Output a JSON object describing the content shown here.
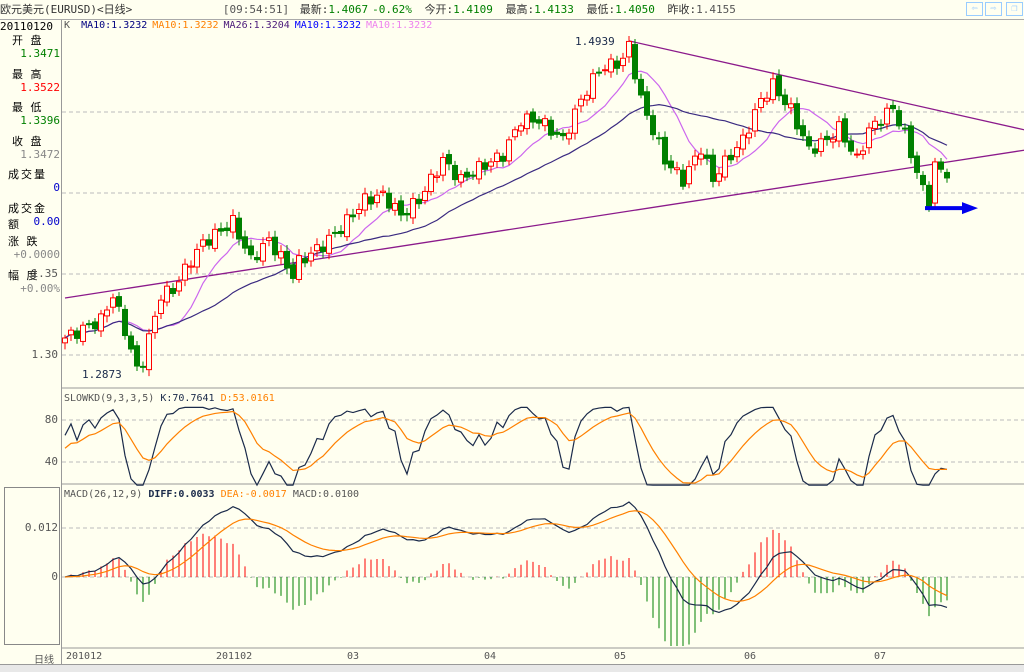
{
  "header": {
    "title": "欧元美元(EURUSD)<日线>",
    "time": "[09:54:51]",
    "latest_label": "最新:",
    "latest": "1.4067",
    "change": "-0.62%",
    "open_label": "今开:",
    "open": "1.4109",
    "high_label": "最高:",
    "high": "1.4133",
    "low_label": "最低:",
    "low": "1.4050",
    "prev_label": "昨收:",
    "prev": "1.4155",
    "nav": [
      "back-arrow-icon",
      "forward-arrow-icon",
      "restore-window-icon"
    ]
  },
  "info": {
    "date": "20110120",
    "items": [
      {
        "label": "开 盘",
        "value": "1.3471",
        "color": "#008000"
      },
      {
        "label": "最 高",
        "value": "1.3522",
        "color": "#ff0000"
      },
      {
        "label": "最 低",
        "value": "1.3396",
        "color": "#008000"
      },
      {
        "label": "收 盘",
        "value": "1.3472",
        "color": "#888888"
      },
      {
        "label": "成交量",
        "value": "0",
        "color": "#0000cc"
      },
      {
        "label": "成交金额",
        "value": "0.00",
        "color": "#0000cc"
      },
      {
        "label": "涨 跌",
        "value": "+0.0000",
        "color": "#888888"
      },
      {
        "label": "幅 度",
        "value": "+0.00%",
        "color": "#888888"
      }
    ]
  },
  "legend": {
    "k": "K",
    "items": [
      {
        "text": "MA10:1.3232",
        "color": "#000080"
      },
      {
        "text": "MA10:1.3232",
        "color": "#ff8000"
      },
      {
        "text": "MA26:1.3204",
        "color": "#4b1a7a"
      },
      {
        "text": "MA10:1.3232",
        "color": "#0000ff"
      },
      {
        "text": "MA10:1.3232",
        "color": "#ee82ee"
      }
    ]
  },
  "kd_legend": {
    "name": "SLOWKD(9,3,3,5)",
    "k": "K:70.7641",
    "d": "D:53.0161"
  },
  "macd_legend": {
    "name": "MACD(26,12,9)",
    "diff": "DIFF:0.0033",
    "dea": "DEA:-0.0017",
    "macd": "MACD:0.0100"
  },
  "period_label": "日线",
  "colors": {
    "up": "#ff0000",
    "down": "#008000",
    "ma_short": "#cc66ee",
    "ma_long": "#3a2a80",
    "trend": "#8b1a8b",
    "k": "#1a2a4a",
    "d": "#ff8000",
    "arrow": "#0000ee"
  },
  "chart_data": {
    "type": "candlestick",
    "price_axis": {
      "ticks": [
        "1.35",
        "1.30"
      ],
      "range": [
        1.27,
        1.5
      ]
    },
    "kd_axis": {
      "ticks": [
        "80",
        "40"
      ]
    },
    "macd_axis": {
      "ticks": [
        "0.012",
        "0"
      ]
    },
    "x_tick_labels": [
      "201012",
      "201102",
      "03",
      "04",
      "05",
      "06",
      "07"
    ],
    "annotations": {
      "high": "1.4939",
      "low": "1.2873"
    },
    "close_keypoints": [
      [
        0,
        1.3105
      ],
      [
        6,
        1.3216
      ],
      [
        8,
        1.337
      ],
      [
        10,
        1.3154
      ],
      [
        12,
        1.2907
      ],
      [
        13,
        1.2969
      ],
      [
        16,
        1.337
      ],
      [
        18,
        1.3401
      ],
      [
        21,
        1.3586
      ],
      [
        23,
        1.3691
      ],
      [
        28,
        1.3821
      ],
      [
        31,
        1.3586
      ],
      [
        34,
        1.371
      ],
      [
        38,
        1.3494
      ],
      [
        39,
        1.3574
      ],
      [
        43,
        1.3679
      ],
      [
        46,
        1.3784
      ],
      [
        50,
        1.3957
      ],
      [
        53,
        1.3988
      ],
      [
        56,
        1.3864
      ],
      [
        59,
        1.3957
      ],
      [
        63,
        1.4204
      ],
      [
        66,
        1.408
      ],
      [
        69,
        1.4154
      ],
      [
        73,
        1.4235
      ],
      [
        76,
        1.4451
      ],
      [
        79,
        1.4451
      ],
      [
        83,
        1.4327
      ],
      [
        86,
        1.4574
      ],
      [
        89,
        1.4759
      ],
      [
        93,
        1.4821
      ],
      [
        94,
        1.4914
      ],
      [
        96,
        1.4574
      ],
      [
        98,
        1.4389
      ],
      [
        100,
        1.4204
      ],
      [
        103,
        1.408
      ],
      [
        106,
        1.4278
      ],
      [
        108,
        1.408
      ],
      [
        109,
        1.4142
      ],
      [
        113,
        1.4327
      ],
      [
        116,
        1.4574
      ],
      [
        118,
        1.4667
      ],
      [
        121,
        1.4512
      ],
      [
        124,
        1.4265
      ],
      [
        127,
        1.4327
      ],
      [
        129,
        1.4401
      ],
      [
        132,
        1.4204
      ],
      [
        134,
        1.4389
      ],
      [
        138,
        1.4525
      ],
      [
        140,
        1.4358
      ],
      [
        143,
        1.4019
      ],
      [
        144,
        1.3957
      ],
      [
        145,
        1.4173
      ],
      [
        147,
        1.4093
      ]
    ],
    "trendlines": [
      {
        "from": [
          94,
          1.4939
        ],
        "to": [
          160,
          1.4389
        ]
      },
      {
        "from": [
          0,
          1.3352
        ],
        "to": [
          160,
          1.4265
        ]
      }
    ],
    "target_arrow_price": 1.3907
  }
}
